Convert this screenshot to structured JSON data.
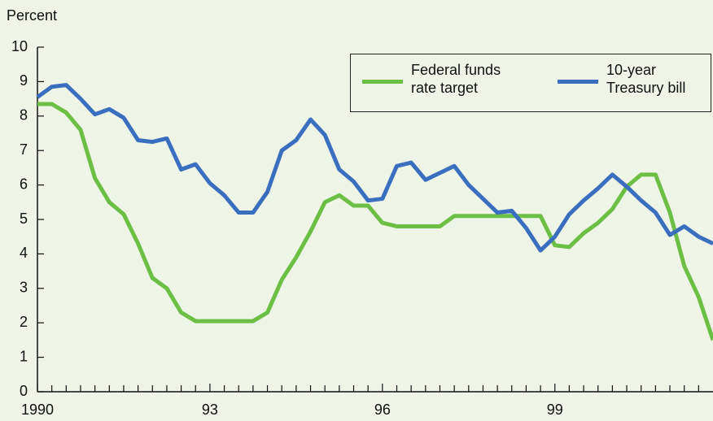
{
  "chart_data": {
    "type": "line",
    "ylabel": "Percent",
    "x": [
      1990,
      1990.25,
      1990.5,
      1990.75,
      1991,
      1991.25,
      1991.5,
      1991.75,
      1992,
      1992.25,
      1992.5,
      1992.75,
      1993,
      1993.25,
      1993.5,
      1993.75,
      1994,
      1994.25,
      1994.5,
      1994.75,
      1995,
      1995.25,
      1995.5,
      1995.75,
      1996,
      1996.25,
      1996.5,
      1996.75,
      1997,
      1997.25,
      1997.5,
      1997.75,
      1998,
      1998.25,
      1998.5,
      1998.75,
      1999,
      1999.25,
      1999.5,
      1999.75,
      2000,
      2000.25,
      2000.5,
      2000.75,
      2001,
      2001.25,
      2001.5,
      2001.75
    ],
    "series": [
      {
        "name": "Federal funds\nrate target",
        "color": "#6cbf45",
        "values": [
          8.35,
          8.35,
          8.1,
          7.6,
          6.2,
          5.5,
          5.15,
          4.3,
          3.3,
          3.0,
          2.3,
          2.05,
          2.05,
          2.05,
          2.05,
          2.05,
          2.3,
          3.25,
          3.9,
          4.65,
          5.5,
          5.7,
          5.4,
          5.4,
          4.9,
          4.8,
          4.8,
          4.8,
          4.8,
          5.1,
          5.1,
          5.1,
          5.1,
          5.1,
          5.1,
          5.1,
          4.25,
          4.2,
          4.6,
          4.9,
          5.3,
          5.95,
          6.3,
          6.3,
          5.2,
          3.65,
          2.75,
          1.5
        ]
      },
      {
        "name": "10-year\nTreasury bill",
        "color": "#3a6fc0",
        "values": [
          8.55,
          8.85,
          8.9,
          8.5,
          8.05,
          8.2,
          7.95,
          7.3,
          7.25,
          7.35,
          6.45,
          6.6,
          6.05,
          5.7,
          5.2,
          5.2,
          5.8,
          7.0,
          7.3,
          7.9,
          7.45,
          6.45,
          6.1,
          5.55,
          5.6,
          6.55,
          6.65,
          6.15,
          6.35,
          6.55,
          6.0,
          5.6,
          5.2,
          5.25,
          4.75,
          4.1,
          4.5,
          5.15,
          5.55,
          5.9,
          6.3,
          5.95,
          5.55,
          5.2,
          4.55,
          4.8,
          4.5,
          4.3
        ]
      }
    ],
    "xlim": [
      1990,
      2001.75
    ],
    "xticks": [
      1990,
      {
        "value": 1993,
        "label": "93"
      },
      {
        "value": 1996,
        "label": "96"
      },
      {
        "value": 1999,
        "label": "99"
      }
    ],
    "xminorticks": [
      1990.25,
      1990.5,
      1990.75,
      1991,
      1991.25,
      1991.5,
      1991.75,
      1992,
      1992.25,
      1992.5,
      1992.75,
      1993.25,
      1993.5,
      1993.75,
      1994,
      1994.25,
      1994.5,
      1994.75,
      1995,
      1995.25,
      1995.5,
      1995.75,
      1996.25,
      1996.5,
      1996.75,
      1997,
      1997.25,
      1997.5,
      1997.75,
      1998,
      1998.25,
      1998.5,
      1998.75,
      1999.25,
      1999.5,
      1999.75,
      2000,
      2000.25,
      2000.5,
      2000.75,
      2001,
      2001.25,
      2001.5
    ],
    "ylim": [
      0,
      10
    ],
    "yticks": [
      0,
      1,
      2,
      3,
      4,
      5,
      6,
      7,
      8,
      9,
      10
    ],
    "grid": false
  }
}
